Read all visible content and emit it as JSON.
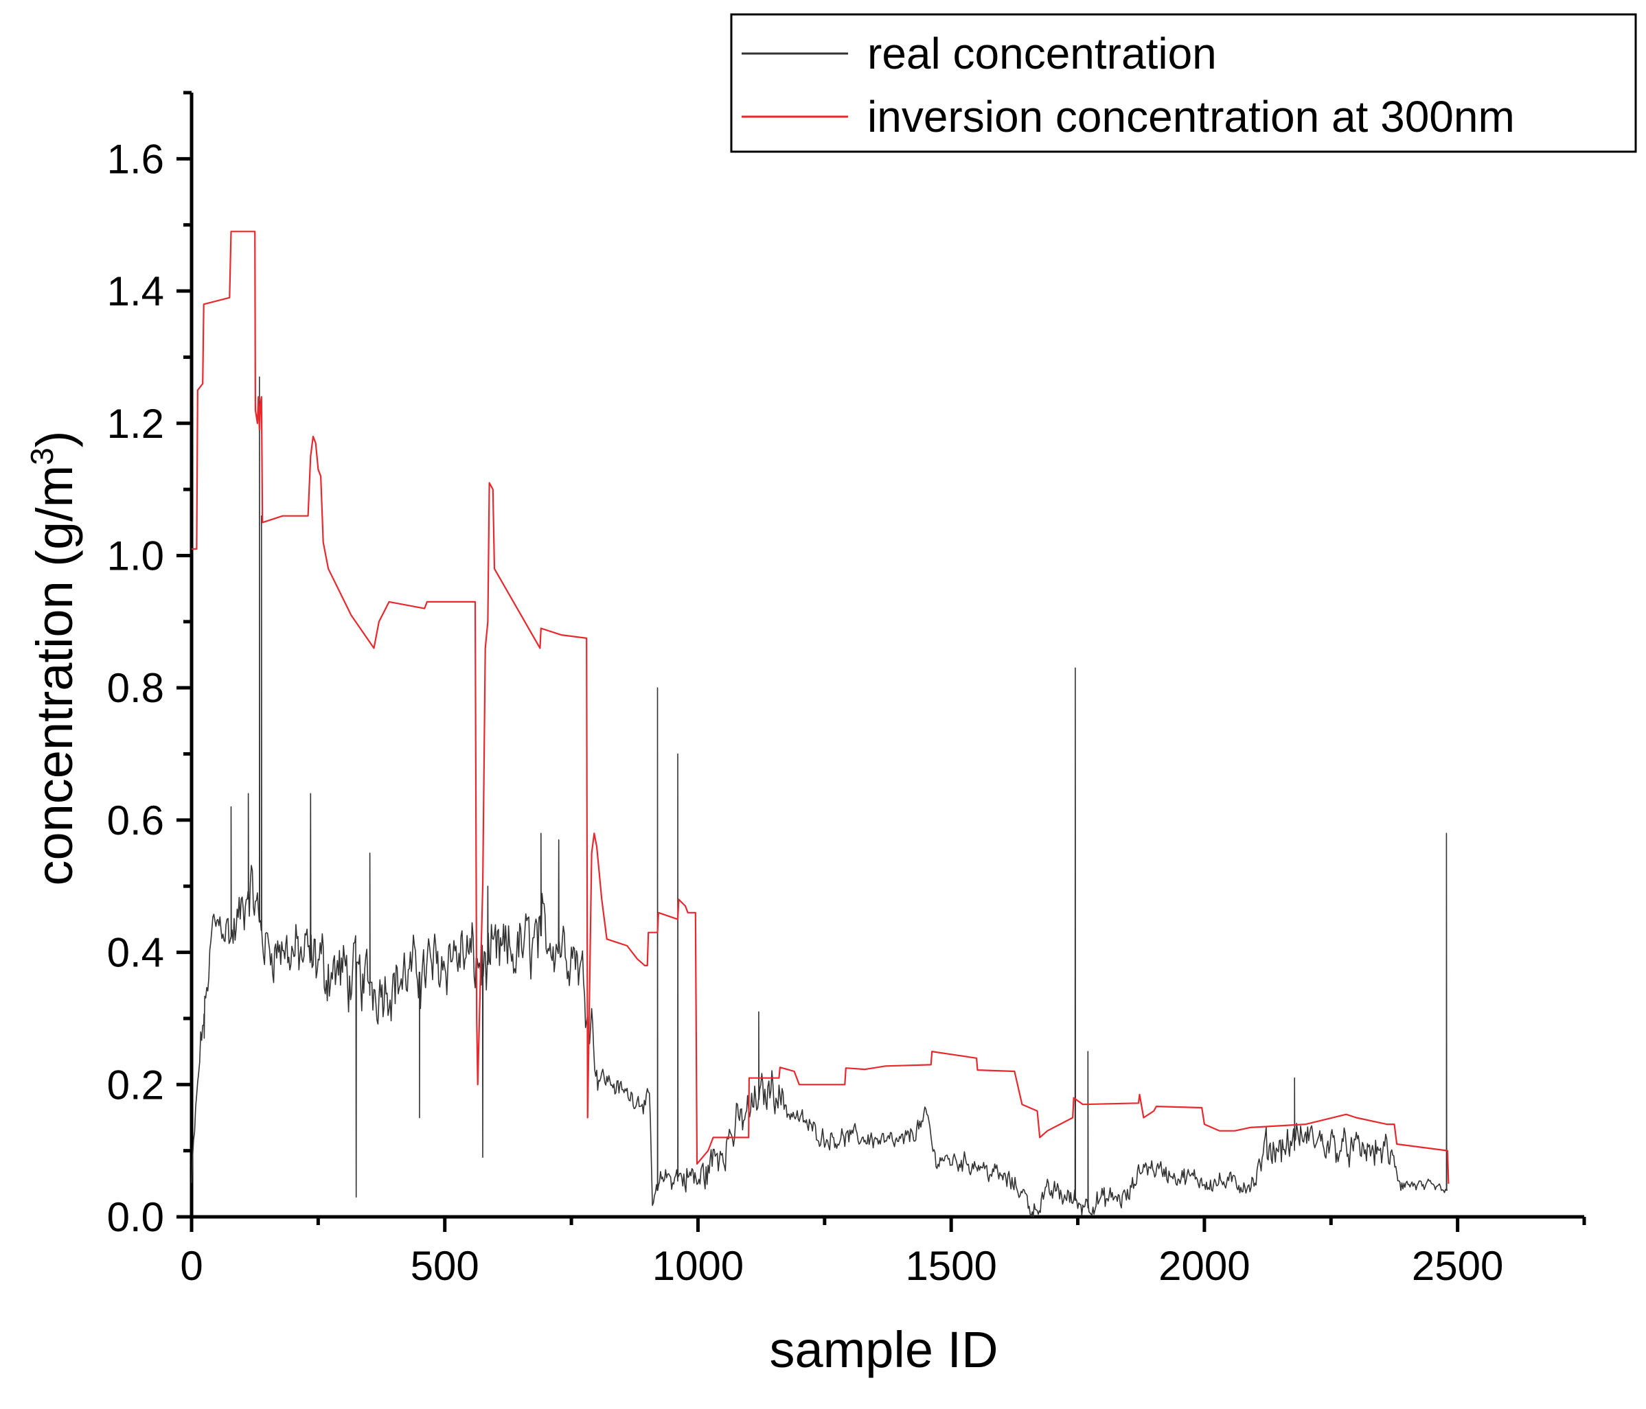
{
  "chart_data": {
    "type": "line",
    "title": "",
    "xlabel": "sample ID",
    "ylabel_parts": {
      "base": "concentration (g/m",
      "superscript": "3",
      "close": ")"
    },
    "xlim": [
      0,
      2750
    ],
    "ylim": [
      0,
      1.7
    ],
    "xticks": [
      0,
      500,
      1000,
      1500,
      2000,
      2500
    ],
    "xtick_labels": [
      "0",
      "500",
      "1000",
      "1500",
      "2000",
      "2500"
    ],
    "xminor": [
      250,
      750,
      1250,
      1750,
      2250,
      2750
    ],
    "yticks": [
      0.0,
      0.2,
      0.4,
      0.6,
      0.8,
      1.0,
      1.2,
      1.4,
      1.6
    ],
    "ytick_labels": [
      "0.0",
      "0.2",
      "0.4",
      "0.6",
      "0.8",
      "1.0",
      "1.2",
      "1.4",
      "1.6"
    ],
    "yminor": [
      0.1,
      0.3,
      0.5,
      0.7,
      0.9,
      1.1,
      1.3,
      1.5,
      1.7
    ],
    "grid": false,
    "legend_position": "top-right",
    "series": [
      {
        "name": "real concentration",
        "color": "#333333",
        "style": "noisy",
        "noise_seed": 12345,
        "baseline": [
          [
            0,
            0.05
          ],
          [
            8,
            0.15
          ],
          [
            18,
            0.26
          ],
          [
            30,
            0.34
          ],
          [
            42,
            0.44
          ],
          [
            60,
            0.45
          ],
          [
            80,
            0.42
          ],
          [
            100,
            0.46
          ],
          [
            115,
            0.5
          ],
          [
            130,
            0.46
          ],
          [
            145,
            0.41
          ],
          [
            200,
            0.4
          ],
          [
            260,
            0.38
          ],
          [
            320,
            0.36
          ],
          [
            380,
            0.35
          ],
          [
            450,
            0.37
          ],
          [
            520,
            0.4
          ],
          [
            580,
            0.38
          ],
          [
            640,
            0.4
          ],
          [
            700,
            0.43
          ],
          [
            760,
            0.4
          ],
          [
            790,
            0.3
          ],
          [
            800,
            0.22
          ],
          [
            850,
            0.19
          ],
          [
            905,
            0.17
          ],
          [
            910,
            0.02
          ],
          [
            930,
            0.06
          ],
          [
            990,
            0.06
          ],
          [
            1000,
            0.05
          ],
          [
            1060,
            0.12
          ],
          [
            1110,
            0.17
          ],
          [
            1150,
            0.2
          ],
          [
            1180,
            0.16
          ],
          [
            1250,
            0.12
          ],
          [
            1330,
            0.12
          ],
          [
            1400,
            0.11
          ],
          [
            1455,
            0.15
          ],
          [
            1465,
            0.09
          ],
          [
            1550,
            0.08
          ],
          [
            1600,
            0.06
          ],
          [
            1640,
            0.04
          ],
          [
            1660,
            0.01
          ],
          [
            1700,
            0.04
          ],
          [
            1760,
            0.02
          ],
          [
            1850,
            0.03
          ],
          [
            1880,
            0.08
          ],
          [
            1950,
            0.06
          ],
          [
            2050,
            0.05
          ],
          [
            2100,
            0.05
          ],
          [
            2120,
            0.1
          ],
          [
            2200,
            0.12
          ],
          [
            2300,
            0.1
          ],
          [
            2360,
            0.1
          ],
          [
            2390,
            0.05
          ],
          [
            2480,
            0.04
          ]
        ],
        "noise_amplitude": [
          [
            0,
            0.03
          ],
          [
            50,
            0.04
          ],
          [
            100,
            0.06
          ],
          [
            150,
            0.05
          ],
          [
            260,
            0.07
          ],
          [
            400,
            0.06
          ],
          [
            600,
            0.07
          ],
          [
            790,
            0.06
          ],
          [
            810,
            0.02
          ],
          [
            905,
            0.02
          ],
          [
            930,
            0.02
          ],
          [
            1000,
            0.04
          ],
          [
            1150,
            0.04
          ],
          [
            1200,
            0.02
          ],
          [
            1460,
            0.02
          ],
          [
            1650,
            0.02
          ],
          [
            1700,
            0.025
          ],
          [
            1880,
            0.02
          ],
          [
            2100,
            0.02
          ],
          [
            2120,
            0.035
          ],
          [
            2380,
            0.03
          ],
          [
            2400,
            0.012
          ],
          [
            2480,
            0.012
          ]
        ],
        "spikes": [
          [
            25,
            0.27
          ],
          [
            78,
            0.62
          ],
          [
            112,
            0.64
          ],
          [
            134,
            1.27
          ],
          [
            138,
            1.06
          ],
          [
            235,
            0.64
          ],
          [
            325,
            0.03
          ],
          [
            352,
            0.55
          ],
          [
            450,
            0.15
          ],
          [
            575,
            0.09
          ],
          [
            585,
            0.5
          ],
          [
            690,
            0.58
          ],
          [
            725,
            0.57
          ],
          [
            920,
            0.8
          ],
          [
            960,
            0.7
          ],
          [
            1120,
            0.31
          ],
          [
            1745,
            0.83
          ],
          [
            1770,
            0.25
          ],
          [
            2178,
            0.21
          ],
          [
            2478,
            0.58
          ]
        ]
      },
      {
        "name": "inversion concentration at 300nm",
        "color": "#e8282d",
        "style": "line",
        "points": [
          [
            0,
            1.01
          ],
          [
            10,
            1.01
          ],
          [
            12,
            1.25
          ],
          [
            22,
            1.26
          ],
          [
            24,
            1.38
          ],
          [
            75,
            1.39
          ],
          [
            78,
            1.49
          ],
          [
            98,
            1.49
          ],
          [
            125,
            1.49
          ],
          [
            126,
            1.22
          ],
          [
            130,
            1.2
          ],
          [
            132,
            1.24
          ],
          [
            134,
            1.19
          ],
          [
            136,
            1.23
          ],
          [
            138,
            1.24
          ],
          [
            140,
            1.05
          ],
          [
            180,
            1.06
          ],
          [
            230,
            1.06
          ],
          [
            235,
            1.15
          ],
          [
            240,
            1.18
          ],
          [
            245,
            1.17
          ],
          [
            250,
            1.13
          ],
          [
            255,
            1.12
          ],
          [
            260,
            1.02
          ],
          [
            265,
            1.0
          ],
          [
            270,
            0.98
          ],
          [
            315,
            0.91
          ],
          [
            360,
            0.86
          ],
          [
            370,
            0.9
          ],
          [
            390,
            0.93
          ],
          [
            460,
            0.92
          ],
          [
            465,
            0.93
          ],
          [
            560,
            0.93
          ],
          [
            563,
            0.3
          ],
          [
            565,
            0.2
          ],
          [
            575,
            0.5
          ],
          [
            580,
            0.86
          ],
          [
            585,
            0.9
          ],
          [
            588,
            1.11
          ],
          [
            595,
            1.1
          ],
          [
            598,
            0.98
          ],
          [
            688,
            0.86
          ],
          [
            690,
            0.89
          ],
          [
            730,
            0.88
          ],
          [
            780,
            0.875
          ],
          [
            782,
            0.15
          ],
          [
            790,
            0.55
          ],
          [
            795,
            0.58
          ],
          [
            800,
            0.56
          ],
          [
            810,
            0.48
          ],
          [
            820,
            0.42
          ],
          [
            860,
            0.41
          ],
          [
            880,
            0.39
          ],
          [
            895,
            0.38
          ],
          [
            900,
            0.38
          ],
          [
            902,
            0.43
          ],
          [
            920,
            0.43
          ],
          [
            922,
            0.46
          ],
          [
            960,
            0.45
          ],
          [
            962,
            0.48
          ],
          [
            975,
            0.47
          ],
          [
            980,
            0.46
          ],
          [
            995,
            0.46
          ],
          [
            998,
            0.08
          ],
          [
            1020,
            0.1
          ],
          [
            1030,
            0.12
          ],
          [
            1100,
            0.12
          ],
          [
            1101,
            0.21
          ],
          [
            1160,
            0.21
          ],
          [
            1162,
            0.226
          ],
          [
            1190,
            0.22
          ],
          [
            1200,
            0.2
          ],
          [
            1290,
            0.2
          ],
          [
            1292,
            0.225
          ],
          [
            1330,
            0.223
          ],
          [
            1370,
            0.228
          ],
          [
            1460,
            0.23
          ],
          [
            1462,
            0.25
          ],
          [
            1550,
            0.24
          ],
          [
            1552,
            0.222
          ],
          [
            1625,
            0.22
          ],
          [
            1640,
            0.17
          ],
          [
            1670,
            0.16
          ],
          [
            1675,
            0.12
          ],
          [
            1690,
            0.13
          ],
          [
            1740,
            0.15
          ],
          [
            1742,
            0.18
          ],
          [
            1760,
            0.17
          ],
          [
            1870,
            0.172
          ],
          [
            1872,
            0.185
          ],
          [
            1880,
            0.15
          ],
          [
            1900,
            0.16
          ],
          [
            1905,
            0.167
          ],
          [
            1995,
            0.165
          ],
          [
            2000,
            0.14
          ],
          [
            2030,
            0.13
          ],
          [
            2060,
            0.13
          ],
          [
            2090,
            0.135
          ],
          [
            2200,
            0.14
          ],
          [
            2280,
            0.155
          ],
          [
            2300,
            0.15
          ],
          [
            2360,
            0.14
          ],
          [
            2375,
            0.14
          ],
          [
            2380,
            0.11
          ],
          [
            2480,
            0.1
          ],
          [
            2482,
            0.05
          ]
        ]
      }
    ]
  }
}
